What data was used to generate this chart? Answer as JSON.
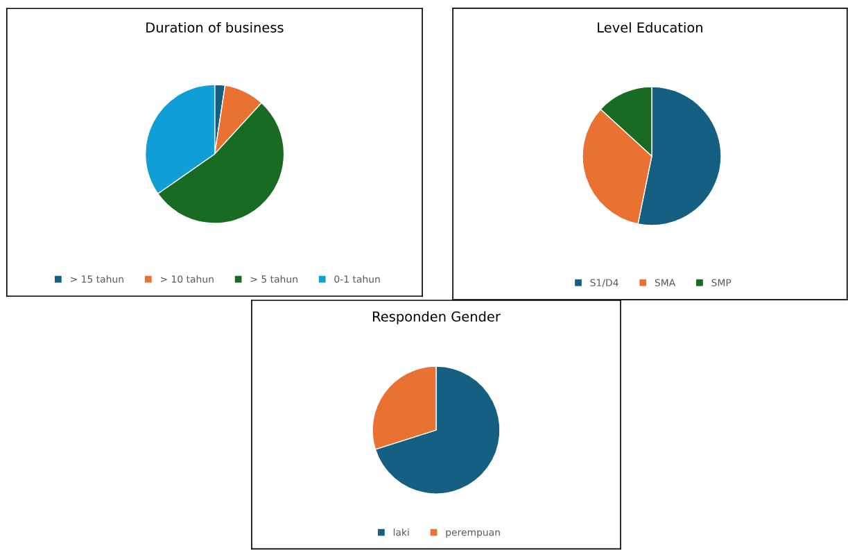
{
  "chart_data": [
    {
      "type": "pie",
      "title": "Duration of business",
      "categories": [
        "> 15 tahun",
        "> 10 tahun",
        "> 5 tahun",
        "0-1 tahun"
      ],
      "values": [
        2.4,
        9.4,
        53.5,
        34.7
      ],
      "colors": [
        "#156082",
        "#e97132",
        "#196b24",
        "#0f9ed5"
      ],
      "legend": "bottom"
    },
    {
      "type": "pie",
      "title": "Level Education",
      "categories": [
        "S1/D4",
        "SMA",
        "SMP"
      ],
      "values": [
        53.2,
        33.6,
        13.2
      ],
      "colors": [
        "#156082",
        "#e97132",
        "#196b24"
      ],
      "legend": "bottom"
    },
    {
      "type": "pie",
      "title": "Responden Gender",
      "categories": [
        "laki",
        "perempuan"
      ],
      "values": [
        70.1,
        29.9
      ],
      "colors": [
        "#156082",
        "#e97132"
      ],
      "legend": "bottom"
    }
  ]
}
